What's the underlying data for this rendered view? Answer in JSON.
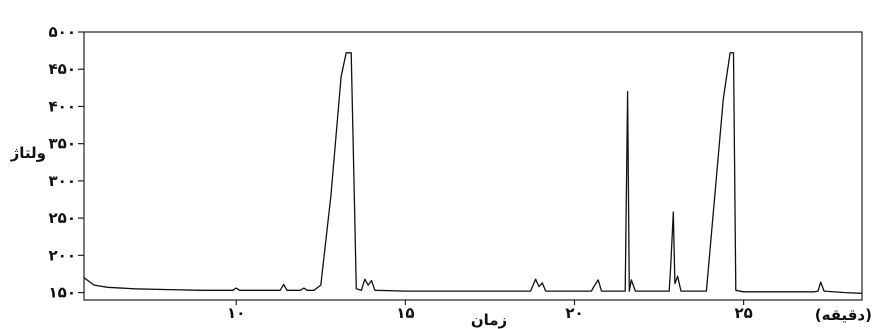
{
  "chart_data": {
    "type": "line",
    "title": "",
    "ylabel": "ولتاژ",
    "xlabel": "زمان",
    "xunit": "(دقیقه)",
    "xlim": [
      5.5,
      28.5
    ],
    "ylim": [
      140,
      500
    ],
    "xticks": [
      {
        "value": 10,
        "label": "۱۰"
      },
      {
        "value": 15,
        "label": "۱۵"
      },
      {
        "value": 20,
        "label": "۲۰"
      },
      {
        "value": 25,
        "label": "۲۵"
      }
    ],
    "yticks": [
      {
        "value": 150,
        "label": "۱۵۰"
      },
      {
        "value": 200,
        "label": "۲۰۰"
      },
      {
        "value": 250,
        "label": "۲۵۰"
      },
      {
        "value": 300,
        "label": "۳۰۰"
      },
      {
        "value": 350,
        "label": "۳۵۰"
      },
      {
        "value": 400,
        "label": "۴۰۰"
      },
      {
        "value": 450,
        "label": "۴۵۰"
      },
      {
        "value": 500,
        "label": "۵۰۰"
      }
    ],
    "grid": false,
    "legend": "none",
    "series": [
      {
        "color": "#111111",
        "points": [
          [
            5.5,
            170
          ],
          [
            5.8,
            160
          ],
          [
            6.2,
            157
          ],
          [
            7,
            155
          ],
          [
            8,
            154
          ],
          [
            9,
            153
          ],
          [
            9.9,
            153
          ],
          [
            10.0,
            156
          ],
          [
            10.1,
            153
          ],
          [
            11.3,
            153
          ],
          [
            11.4,
            161
          ],
          [
            11.5,
            153
          ],
          [
            11.9,
            153
          ],
          [
            12.0,
            156
          ],
          [
            12.1,
            153
          ],
          [
            12.3,
            153
          ],
          [
            12.5,
            160
          ],
          [
            12.8,
            280
          ],
          [
            13.1,
            440
          ],
          [
            13.25,
            472
          ],
          [
            13.4,
            472
          ],
          [
            13.55,
            155
          ],
          [
            13.7,
            153
          ],
          [
            13.8,
            168
          ],
          [
            13.9,
            160
          ],
          [
            14.0,
            166
          ],
          [
            14.1,
            153
          ],
          [
            15.0,
            152
          ],
          [
            16.0,
            152
          ],
          [
            17.0,
            152
          ],
          [
            18.0,
            152
          ],
          [
            18.7,
            152
          ],
          [
            18.85,
            168
          ],
          [
            18.95,
            158
          ],
          [
            19.05,
            163
          ],
          [
            19.15,
            152
          ],
          [
            20.5,
            152
          ],
          [
            20.6,
            160
          ],
          [
            20.7,
            167
          ],
          [
            20.8,
            152
          ],
          [
            21.5,
            152
          ],
          [
            21.57,
            420
          ],
          [
            21.62,
            152
          ],
          [
            21.68,
            167
          ],
          [
            21.8,
            152
          ],
          [
            22.8,
            152
          ],
          [
            22.85,
            190
          ],
          [
            22.92,
            258
          ],
          [
            22.97,
            162
          ],
          [
            23.05,
            172
          ],
          [
            23.15,
            152
          ],
          [
            23.9,
            152
          ],
          [
            24.4,
            410
          ],
          [
            24.6,
            472
          ],
          [
            24.7,
            472
          ],
          [
            24.77,
            153
          ],
          [
            25.0,
            151
          ],
          [
            26.0,
            151
          ],
          [
            27.1,
            151
          ],
          [
            27.2,
            152
          ],
          [
            27.28,
            164
          ],
          [
            27.38,
            152
          ],
          [
            28.0,
            150
          ],
          [
            28.5,
            149
          ]
        ]
      }
    ]
  }
}
